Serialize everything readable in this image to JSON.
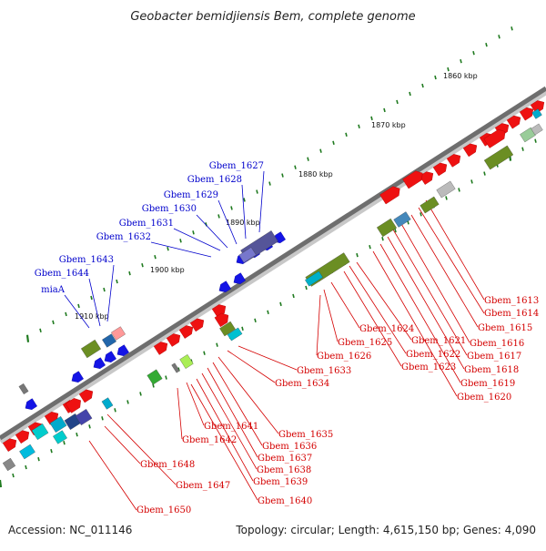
{
  "map": {
    "title": "Geobacter bemidjiensis Bem, complete genome",
    "accession": "Accession: NC_011146",
    "summary": "Topology: circular; Length: 4,615,150 bp; Genes: 4,090",
    "scale_labels": [
      "1860 kbp",
      "1870 kbp",
      "1880 kbp",
      "1890 kbp",
      "1900 kbp",
      "1910 kbp"
    ],
    "colors": {
      "forward_cds": "#ee1111",
      "reverse_cds": "#1414e6",
      "backbone": "#777777",
      "tick": "#1f7a1f",
      "label_red": "#d40000",
      "label_blue": "#0000cc"
    },
    "blue_labels": [
      "Gbem_1627",
      "Gbem_1628",
      "Gbem_1629",
      "Gbem_1630",
      "Gbem_1631",
      "Gbem_1632",
      "Gbem_1643",
      "Gbem_1644",
      "miaA"
    ],
    "red_labels_right": [
      "Gbem_1613",
      "Gbem_1614",
      "Gbem_1615",
      "Gbem_1616",
      "Gbem_1617",
      "Gbem_1618",
      "Gbem_1619",
      "Gbem_1620",
      "Gbem_1621",
      "Gbem_1622",
      "Gbem_1623",
      "Gbem_1624",
      "Gbem_1625",
      "Gbem_1626"
    ],
    "red_labels_middle": [
      "Gbem_1633",
      "Gbem_1634",
      "Gbem_1635",
      "Gbem_1636",
      "Gbem_1637",
      "Gbem_1638",
      "Gbem_1639",
      "Gbem_1640",
      "Gbem_1641",
      "Gbem_1642"
    ],
    "red_labels_left": [
      "Gbem_1647",
      "Gbem_1648",
      "Gbem_1650"
    ]
  }
}
